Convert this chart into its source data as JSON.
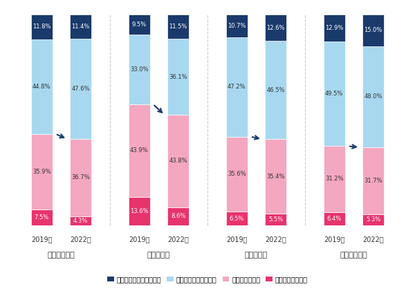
{
  "categories": [
    "好感が持てる",
    "興味を持つ",
    "信頼できる",
    "買いたくなる"
  ],
  "years": [
    "2019年",
    "2022年"
  ],
  "colors": [
    "#e8336d",
    "#f4a7c0",
    "#a8d8f0",
    "#1a3a6b"
  ],
  "data": {
    "好感が持てる": {
      "2019年": [
        7.5,
        35.9,
        44.8,
        11.8
      ],
      "2022年": [
        4.3,
        36.7,
        47.6,
        11.4
      ]
    },
    "興味を持つ": {
      "2019年": [
        13.6,
        43.9,
        33.0,
        9.5
      ],
      "2022年": [
        8.6,
        43.8,
        36.1,
        11.5
      ]
    },
    "信頼できる": {
      "2019年": [
        6.5,
        35.6,
        47.2,
        10.7
      ],
      "2022年": [
        5.5,
        35.4,
        46.5,
        12.6
      ]
    },
    "買いたくなる": {
      "2019年": [
        6.4,
        31.2,
        49.5,
        12.9
      ],
      "2022年": [
        5.3,
        31.7,
        48.0,
        15.0
      ]
    }
  },
  "legend_labels": [
    "まったくあてはまらない",
    "あまりあてはまらない",
    "ややあてはまる",
    "とてもあてはまる"
  ],
  "legend_colors": [
    "#1a3a6b",
    "#a8d8f0",
    "#f4a7c0",
    "#e8336d"
  ],
  "background_color": "#ffffff",
  "figsize": [
    6.0,
    4.18
  ],
  "dpi": 100
}
